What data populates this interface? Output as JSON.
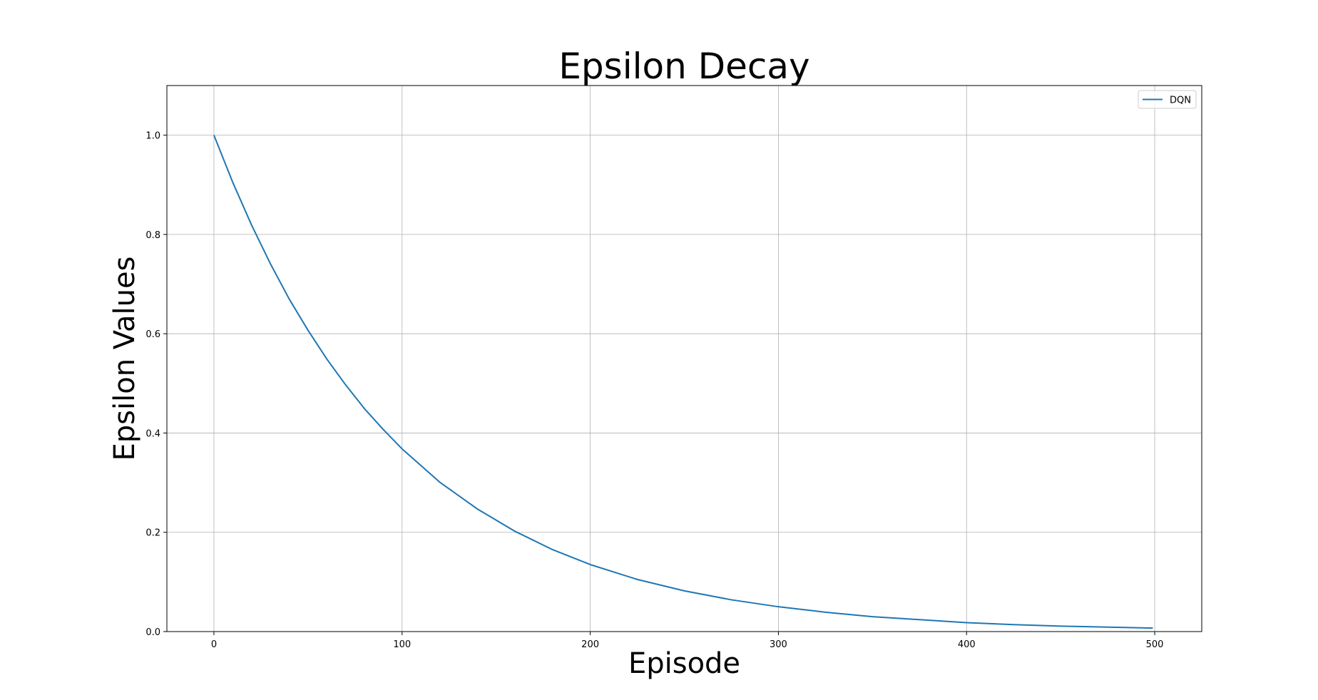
{
  "chart_data": {
    "type": "line",
    "title": "Epsilon Decay",
    "xlabel": "Episode",
    "ylabel": "Epsilon Values",
    "xlim": [
      -25,
      525
    ],
    "ylim": [
      0.0,
      1.1
    ],
    "x_ticks": [
      0,
      100,
      200,
      300,
      400,
      500
    ],
    "x_tick_labels": [
      "0",
      "100",
      "200",
      "300",
      "400",
      "500"
    ],
    "y_ticks": [
      0.0,
      0.2,
      0.4,
      0.6,
      0.8,
      1.0
    ],
    "y_tick_labels": [
      "0.0",
      "0.2",
      "0.4",
      "0.6",
      "0.8",
      "1.0"
    ],
    "grid": true,
    "legend_position": "top-right",
    "series": [
      {
        "name": "DQN",
        "color": "#1f77b4",
        "x": [
          0,
          10,
          20,
          30,
          40,
          50,
          60,
          70,
          80,
          90,
          100,
          120,
          140,
          160,
          180,
          200,
          225,
          250,
          275,
          300,
          325,
          350,
          375,
          400,
          425,
          450,
          475,
          499
        ],
        "y": [
          1.0,
          0.905,
          0.819,
          0.741,
          0.67,
          0.607,
          0.549,
          0.497,
          0.449,
          0.407,
          0.368,
          0.301,
          0.247,
          0.202,
          0.165,
          0.135,
          0.105,
          0.082,
          0.064,
          0.05,
          0.039,
          0.03,
          0.024,
          0.018,
          0.014,
          0.011,
          0.009,
          0.007
        ]
      }
    ]
  }
}
